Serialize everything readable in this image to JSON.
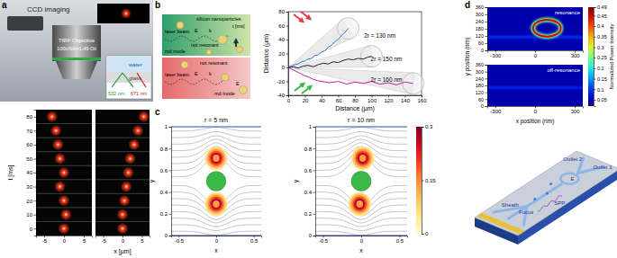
{
  "figure": {
    "panel_labels": [
      "a",
      "b",
      "c",
      "d"
    ],
    "setup_a": [
      "CCD imaging",
      "TIRF Objective",
      "100x/NA=1.49 Oil",
      "water",
      "glass",
      "532 nm",
      "671 nm"
    ],
    "schematic_b": {
      "top": [
        "silicon nanoparticles",
        "t [ms]",
        "laser beam",
        "E",
        "k",
        "not resonant",
        "md mode"
      ],
      "bottom": [
        "not resonant",
        "laser beam",
        "E",
        "k",
        "E",
        "md mode"
      ]
    },
    "device_d": [
      "Outlet 2",
      "Outlet 1",
      "Sheath",
      "Focus",
      "SPP",
      "E"
    ]
  },
  "chart_data": [
    {
      "type": "scatter",
      "y_label": "t [ms]",
      "color": "#ff3a1a",
      "xlim": [
        -7,
        7
      ],
      "xticks": [
        -5,
        0,
        5
      ],
      "ylim": [
        -5,
        85
      ],
      "yticks": [
        0,
        10,
        20,
        30,
        40,
        50,
        60,
        70,
        80
      ],
      "x": [
        0,
        0.5,
        0,
        -1,
        0,
        -1,
        -1.5,
        -2,
        -3
      ],
      "values": [
        0,
        10,
        20,
        30,
        40,
        50,
        60,
        70,
        80
      ]
    },
    {
      "type": "scatter",
      "x_label": "x [µm]",
      "color": "#ff3a1a",
      "tick_labels": "x",
      "xlim": [
        -7,
        7
      ],
      "xticks": [
        -5,
        0,
        5
      ],
      "ylim": [
        -5,
        85
      ],
      "yticks": [
        0,
        10,
        20,
        30,
        40,
        50,
        60,
        70,
        80
      ],
      "x": [
        0,
        0,
        0.5,
        1,
        1.5,
        2,
        3,
        4,
        5.5
      ],
      "values": [
        0,
        10,
        20,
        30,
        40,
        50,
        60,
        70,
        80
      ]
    },
    {
      "type": "line",
      "x_label": "Distance (µm)",
      "y_label": "Distance (µm)",
      "xlim": [
        0,
        160
      ],
      "xticks": [
        0,
        20,
        40,
        60,
        80,
        100,
        120,
        140,
        160
      ],
      "ylim": [
        -40,
        80
      ],
      "yticks": [
        -40,
        -20,
        0,
        20,
        40,
        60,
        80
      ],
      "series": [
        {
          "color": "#2b7bd6",
          "x": [
            0,
            4,
            8,
            12,
            16,
            20,
            24,
            28,
            32,
            36,
            40,
            44,
            48,
            52,
            56,
            60,
            64,
            68,
            72
          ],
          "values": [
            0,
            2,
            4,
            5,
            8,
            9,
            12,
            13,
            17,
            18,
            22,
            24,
            29,
            32,
            37,
            40,
            46,
            50,
            56
          ]
        },
        {
          "color": "#222222",
          "x": [
            0,
            6,
            12,
            18,
            24,
            30,
            36,
            42,
            48,
            54,
            60,
            66,
            72,
            78,
            84,
            90,
            96,
            100
          ],
          "values": [
            0,
            1,
            -1,
            2,
            3,
            1,
            4,
            6,
            5,
            8,
            7,
            10,
            12,
            11,
            13,
            12,
            15,
            16
          ]
        },
        {
          "color": "#c0209a",
          "x": [
            0,
            5,
            10,
            15,
            20,
            25,
            30,
            35,
            40,
            50,
            60,
            70,
            80,
            90,
            100,
            110,
            120,
            130,
            140,
            150
          ],
          "values": [
            0,
            -3,
            -6,
            -9,
            -12,
            -14,
            -17,
            -19,
            -20,
            -22,
            -20,
            -24,
            -21,
            -23,
            -20,
            -24,
            -22,
            -25,
            -21,
            -23
          ]
        }
      ],
      "annotations": [
        {
          "text": "2r = 130 nm",
          "x": 91,
          "y": 42
        },
        {
          "text": "2r = 150 nm",
          "x": 99,
          "y": 9
        },
        {
          "text": "2r = 160 nm",
          "x": 99,
          "y": -20
        }
      ]
    },
    {
      "type": "streamline",
      "title": "r = 5 nm",
      "x_label": "x",
      "y_label": "y",
      "xlim": [
        -0.6,
        0.6
      ],
      "xticks": [
        -0.5,
        0,
        0.5
      ],
      "ylim": [
        0,
        1
      ],
      "yticks": [
        0,
        0.2,
        0.4,
        0.6,
        0.8,
        1
      ],
      "particle": {
        "x": 0,
        "y": 0.5,
        "radius": 0.13
      },
      "streamlines": [
        0.04,
        0.1,
        0.16,
        0.22,
        0.28,
        0.34,
        0.4,
        0.46,
        0.54,
        0.6,
        0.66,
        0.72,
        0.78,
        0.84,
        0.9,
        0.96
      ],
      "lobes": [
        {
          "x": 0,
          "y": 0.71,
          "rx": 0.15,
          "ry": 0.11,
          "value": 0.3
        },
        {
          "x": 0,
          "y": 0.29,
          "rx": 0.15,
          "ry": 0.11,
          "value": 0.3
        }
      ]
    },
    {
      "type": "streamline",
      "title": "r = 10 nm",
      "x_label": "x",
      "y_label": "y",
      "xlim": [
        -0.6,
        0.6
      ],
      "xticks": [
        -0.5,
        0,
        0.5
      ],
      "ylim": [
        0,
        1
      ],
      "yticks": [
        0,
        0.2,
        0.4,
        0.6,
        0.8,
        1
      ],
      "particle": {
        "x": 0,
        "y": 0.5,
        "radius": 0.13
      },
      "streamlines": [
        0.04,
        0.1,
        0.16,
        0.22,
        0.28,
        0.34,
        0.4,
        0.46,
        0.54,
        0.6,
        0.66,
        0.72,
        0.78,
        0.84,
        0.9,
        0.96
      ],
      "lobes": [
        {
          "x": 0.02,
          "y": 0.71,
          "rx": 0.15,
          "ry": 0.11,
          "value": 0.3
        },
        {
          "x": -0.02,
          "y": 0.29,
          "rx": 0.15,
          "ry": 0.11,
          "value": 0.3
        }
      ],
      "colorbar_lim": [
        0,
        0.3
      ],
      "colorbar_ticks": [
        0,
        0.15,
        0.3
      ]
    },
    {
      "type": "heatmap",
      "title": "resonance",
      "y_label": "y position (nm)",
      "xlim": [
        -360,
        360
      ],
      "xticks": [
        -300,
        0,
        300
      ],
      "ylim": [
        0,
        360
      ],
      "yticks": [
        0,
        60,
        120,
        180,
        240,
        300,
        360
      ],
      "background": 0.04,
      "bands": [
        {
          "y": 110,
          "value": 0.1
        }
      ],
      "rings": [
        {
          "x": 90,
          "y": 185,
          "rx": 105,
          "ry": 70,
          "value": 0.45
        }
      ],
      "colorbar_label": "Normalized Power Intensity",
      "colorbar_lim": [
        0.02,
        0.49
      ],
      "colorbar_ticks": [
        0.05,
        0.1,
        0.15,
        0.2,
        0.25,
        0.3,
        0.35,
        0.4,
        0.45,
        0.49
      ]
    },
    {
      "type": "heatmap",
      "title": "off-resonance",
      "x_label": "x position (nm)",
      "xlim": [
        -360,
        360
      ],
      "xticks": [
        -300,
        0,
        300
      ],
      "ylim": [
        0,
        360
      ],
      "yticks": [
        0,
        60,
        120,
        180,
        240,
        300,
        360
      ],
      "background": 0.04,
      "bands": [
        {
          "y": 160,
          "value": 0.09
        }
      ],
      "rings": []
    }
  ]
}
